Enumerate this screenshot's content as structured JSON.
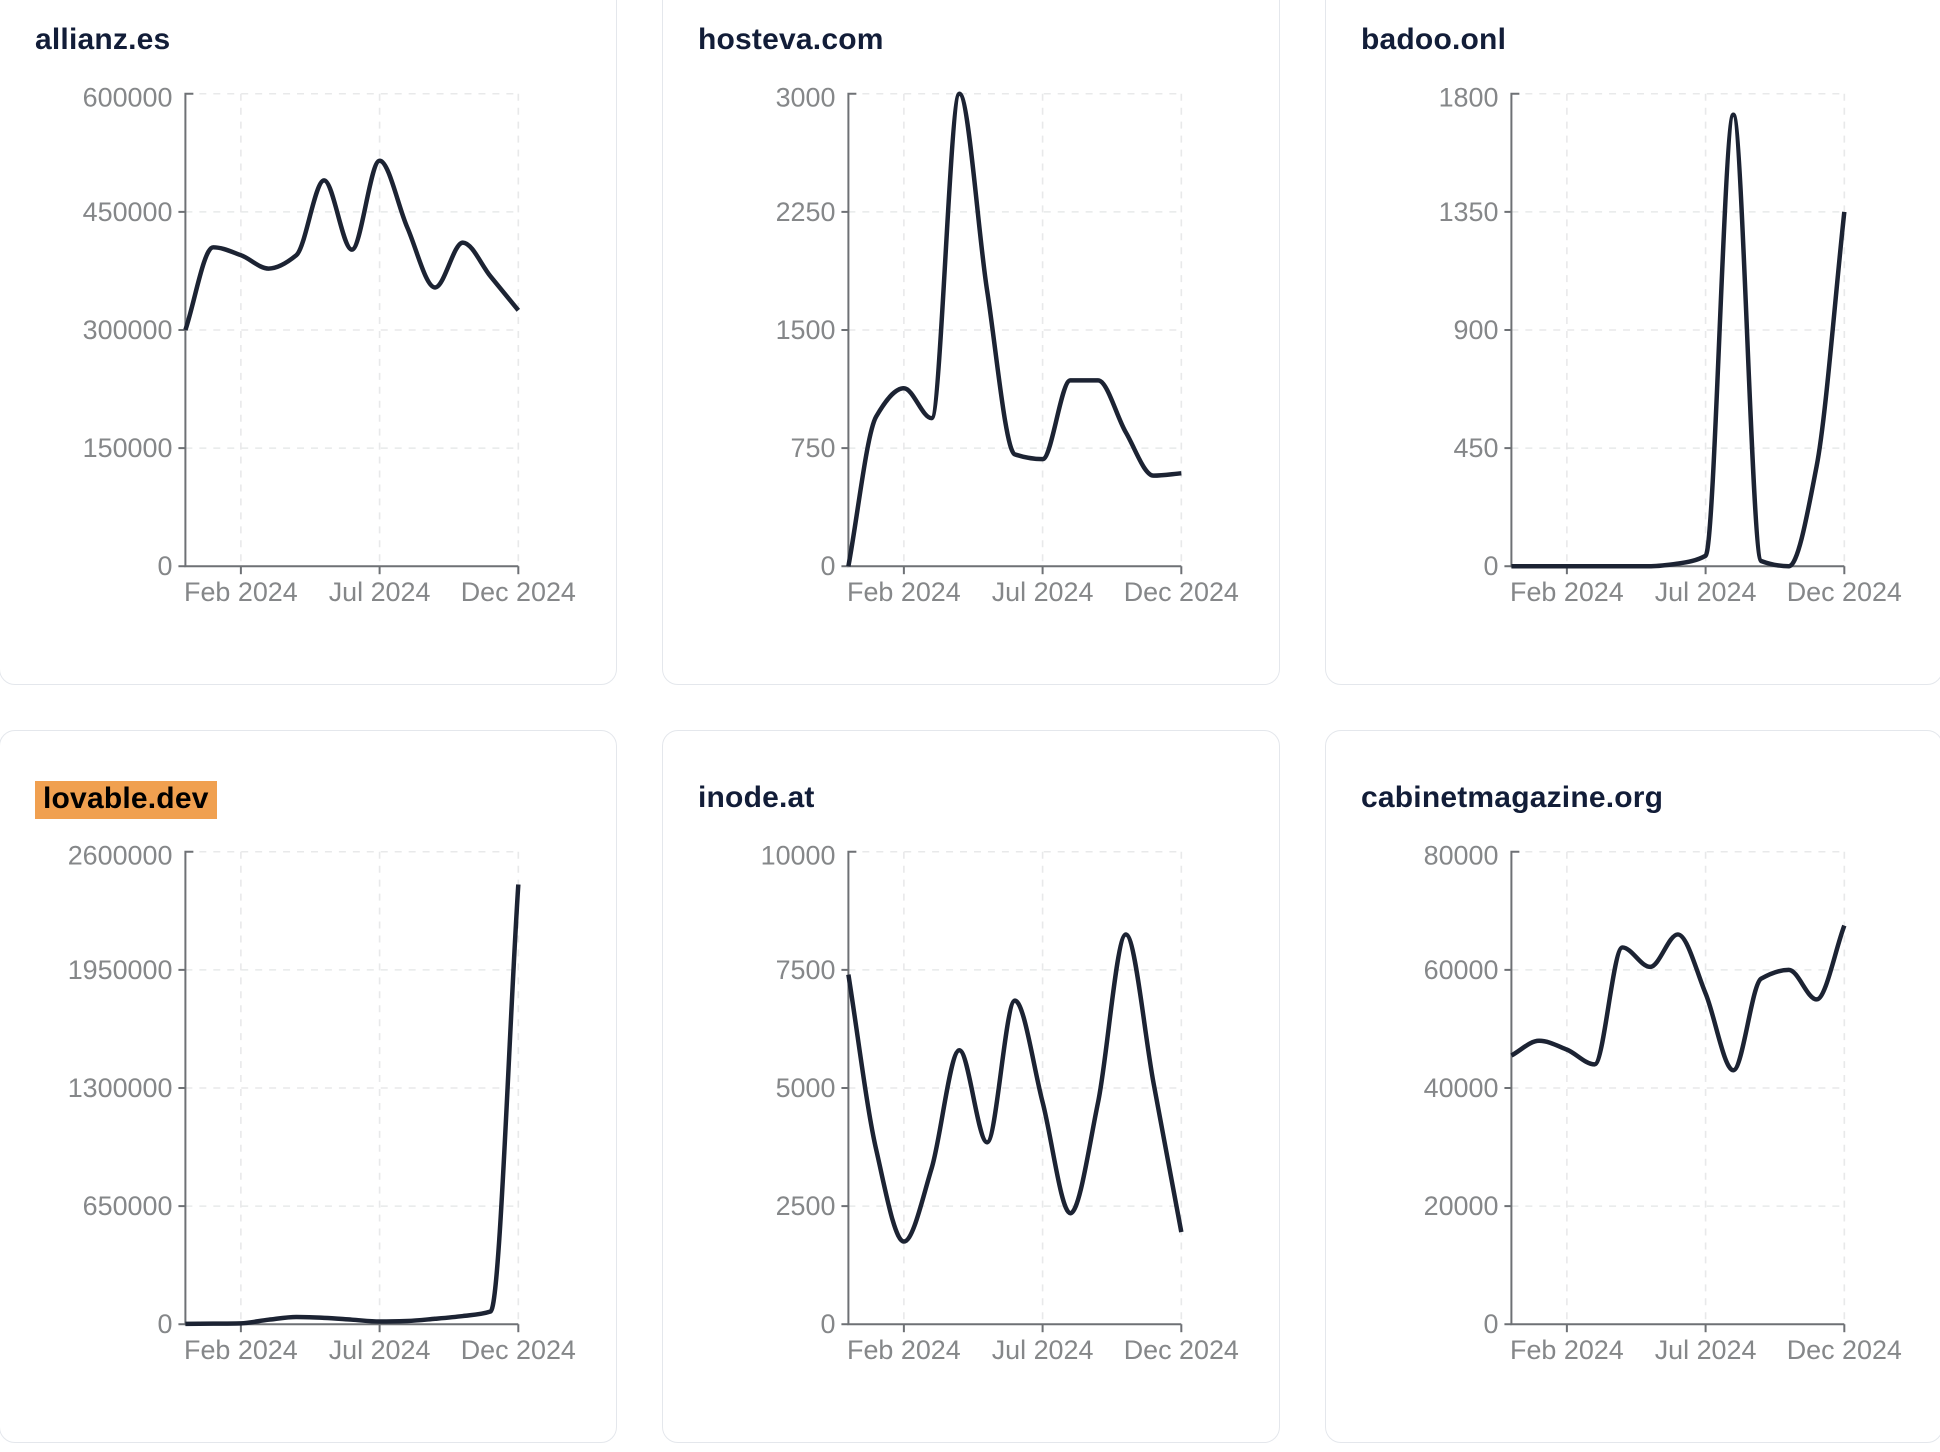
{
  "page": {
    "background": "#ffffff",
    "description": "Dashboard grid of six domain traffic line charts, Dec 2023 - Dec 2024"
  },
  "styles": {
    "line_color": "#1c2333",
    "title_color": "#121d38",
    "highlight_color": "#f0a050",
    "highlight_text_color": "#000000",
    "tick_label_color": "#858789",
    "axis_color": "#6e7175",
    "grid_color": "#e8e9ea",
    "card_border_color": "#e4e7ec"
  },
  "x_axis": {
    "tick_labels": [
      "Feb 2024",
      "Jul 2024",
      "Dec 2024"
    ],
    "tick_month_indices": [
      2,
      7,
      12
    ]
  },
  "chart_data": [
    {
      "type": "line",
      "title": "allianz.es",
      "highlighted": false,
      "x": [
        "2023-12",
        "2024-01",
        "2024-02",
        "2024-03",
        "2024-04",
        "2024-05",
        "2024-06",
        "2024-07",
        "2024-08",
        "2024-09",
        "2024-10",
        "2024-11",
        "2024-12"
      ],
      "values": [
        300000,
        405000,
        395000,
        378000,
        395000,
        490000,
        402000,
        515000,
        430000,
        354000,
        411000,
        368000,
        325000
      ],
      "ylim": [
        0,
        600000
      ],
      "yticks": [
        0,
        150000,
        300000,
        450000,
        600000
      ],
      "xticks": [
        "Feb 2024",
        "Jul 2024",
        "Dec 2024"
      ],
      "grid": true,
      "legend": false
    },
    {
      "type": "line",
      "title": "hosteva.com",
      "highlighted": false,
      "x": [
        "2023-12",
        "2024-01",
        "2024-02",
        "2024-03",
        "2024-04",
        "2024-05",
        "2024-06",
        "2024-07",
        "2024-08",
        "2024-09",
        "2024-10",
        "2024-11",
        "2024-12"
      ],
      "values": [
        0,
        950,
        1130,
        940,
        3000,
        1750,
        710,
        680,
        1180,
        1180,
        850,
        575,
        590
      ],
      "ylim": [
        0,
        3000
      ],
      "yticks": [
        0,
        750,
        1500,
        2250,
        3000
      ],
      "xticks": [
        "Feb 2024",
        "Jul 2024",
        "Dec 2024"
      ],
      "grid": true,
      "legend": false
    },
    {
      "type": "line",
      "title": "badoo.onl",
      "highlighted": false,
      "x": [
        "2023-12",
        "2024-01",
        "2024-02",
        "2024-03",
        "2024-04",
        "2024-05",
        "2024-06",
        "2024-07",
        "2024-08",
        "2024-09",
        "2024-10",
        "2024-11",
        "2024-12"
      ],
      "values": [
        0,
        0,
        0,
        0,
        0,
        0,
        10,
        40,
        1720,
        20,
        0,
        380,
        1350
      ],
      "ylim": [
        0,
        1800
      ],
      "yticks": [
        0,
        450,
        900,
        1350,
        1800
      ],
      "xticks": [
        "Feb 2024",
        "Jul 2024",
        "Dec 2024"
      ],
      "grid": true,
      "legend": false
    },
    {
      "type": "line",
      "title": "lovable.dev",
      "highlighted": true,
      "x": [
        "2023-12",
        "2024-01",
        "2024-02",
        "2024-03",
        "2024-04",
        "2024-05",
        "2024-06",
        "2024-07",
        "2024-08",
        "2024-09",
        "2024-10",
        "2024-11",
        "2024-12"
      ],
      "values": [
        2000,
        3000,
        5000,
        25000,
        40000,
        35000,
        25000,
        15000,
        18000,
        30000,
        45000,
        70000,
        2420000
      ],
      "ylim": [
        0,
        2600000
      ],
      "yticks": [
        0,
        650000,
        1300000,
        1950000,
        2600000
      ],
      "xticks": [
        "Feb 2024",
        "Jul 2024",
        "Dec 2024"
      ],
      "grid": true,
      "legend": false
    },
    {
      "type": "line",
      "title": "inode.at",
      "highlighted": false,
      "x": [
        "2023-12",
        "2024-01",
        "2024-02",
        "2024-03",
        "2024-04",
        "2024-05",
        "2024-06",
        "2024-07",
        "2024-08",
        "2024-09",
        "2024-10",
        "2024-11",
        "2024-12"
      ],
      "values": [
        7400,
        3700,
        1750,
        3300,
        5800,
        3850,
        6850,
        4700,
        2350,
        4700,
        8250,
        5100,
        1950
      ],
      "ylim": [
        0,
        10000
      ],
      "yticks": [
        0,
        2500,
        5000,
        7500,
        10000
      ],
      "xticks": [
        "Feb 2024",
        "Jul 2024",
        "Dec 2024"
      ],
      "grid": true,
      "legend": false
    },
    {
      "type": "line",
      "title": "cabinetmagazine.org",
      "highlighted": false,
      "x": [
        "2023-12",
        "2024-01",
        "2024-02",
        "2024-03",
        "2024-04",
        "2024-05",
        "2024-06",
        "2024-07",
        "2024-08",
        "2024-09",
        "2024-10",
        "2024-11",
        "2024-12"
      ],
      "values": [
        45500,
        48000,
        46500,
        44000,
        63800,
        60500,
        66000,
        56000,
        43000,
        58500,
        60000,
        55000,
        67500
      ],
      "ylim": [
        0,
        80000
      ],
      "yticks": [
        0,
        20000,
        40000,
        60000,
        80000
      ],
      "xticks": [
        "Feb 2024",
        "Jul 2024",
        "Dec 2024"
      ],
      "grid": true,
      "legend": false
    }
  ]
}
